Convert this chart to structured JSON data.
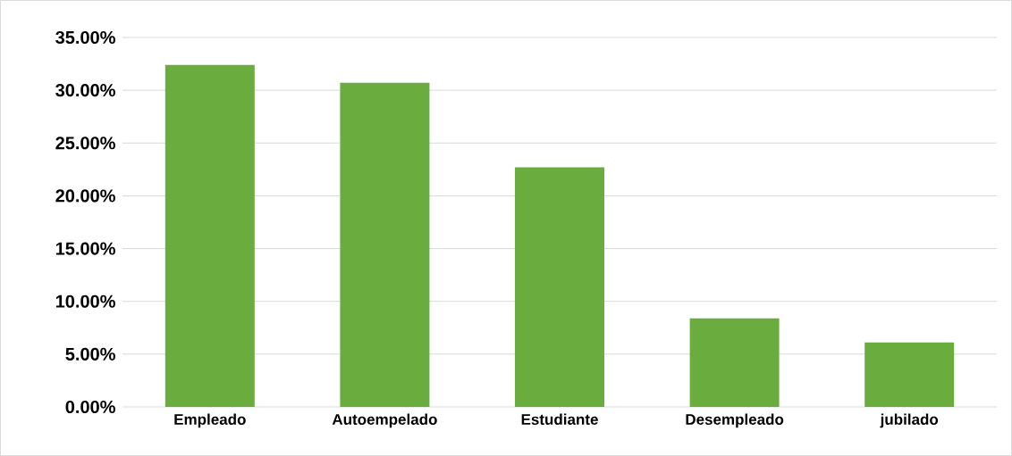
{
  "chart_data": {
    "type": "bar",
    "categories": [
      "Empleado",
      "Autoempelado",
      "Estudiante",
      "Desempleado",
      "jubilado"
    ],
    "values": [
      32.4,
      30.7,
      22.7,
      8.4,
      6.1
    ],
    "color": "#6aad3e",
    "ylim": [
      0,
      35
    ],
    "yticks": [
      {
        "value": 0,
        "label": "0.00%"
      },
      {
        "value": 5,
        "label": "5.00%"
      },
      {
        "value": 10,
        "label": "10.00%"
      },
      {
        "value": 15,
        "label": "15.00%"
      },
      {
        "value": 20,
        "label": "20.00%"
      },
      {
        "value": 25,
        "label": "25.00%"
      },
      {
        "value": 30,
        "label": "30.00%"
      },
      {
        "value": 35,
        "label": "35.00%"
      }
    ],
    "grid": "y"
  }
}
